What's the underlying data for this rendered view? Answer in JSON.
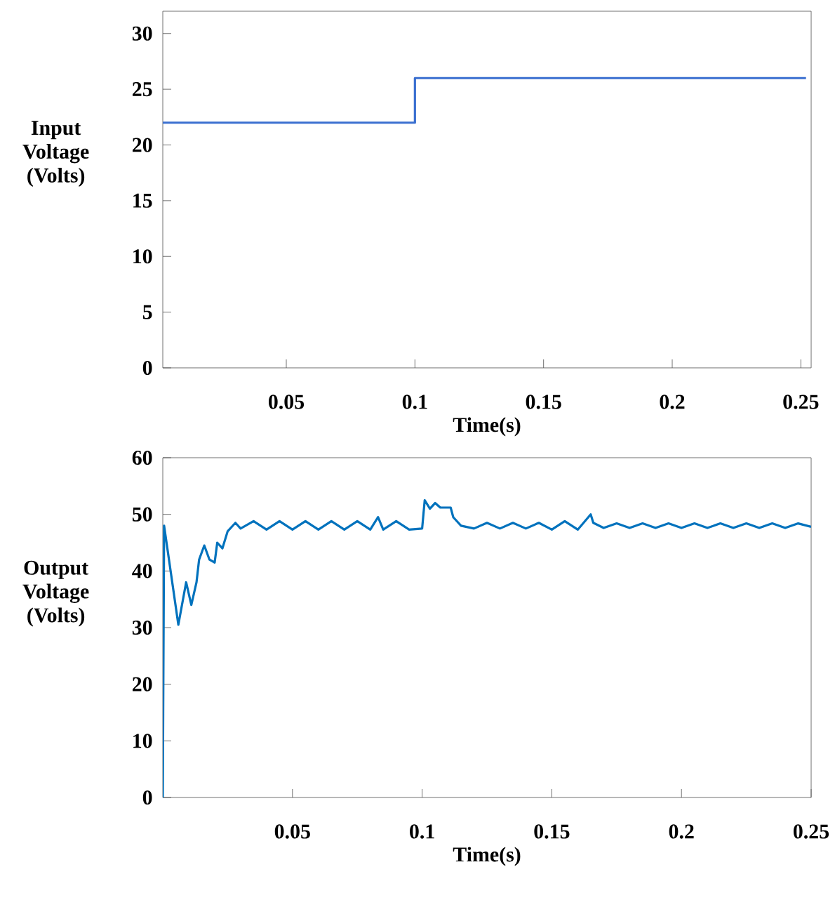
{
  "chart_data": [
    {
      "type": "line",
      "xlabel": "Time(s)",
      "ylabel": "Input Voltage (Volts)",
      "xlim": [
        0.002,
        0.254
      ],
      "ylim": [
        0,
        32
      ],
      "xticks": [
        0.05,
        0.1,
        0.15,
        0.2,
        0.25
      ],
      "yticks": [
        0,
        5,
        10,
        15,
        20,
        25,
        30
      ],
      "grid": false,
      "series": [
        {
          "color": "#3a6fd0",
          "x": [
            0.002,
            0.1,
            0.1,
            0.252
          ],
          "values": [
            22,
            22,
            26,
            26
          ]
        }
      ]
    },
    {
      "type": "line",
      "xlabel": "Time(s)",
      "ylabel": "Output Voltage (Volts)",
      "xlim": [
        0,
        0.25
      ],
      "ylim": [
        0,
        60
      ],
      "xticks": [
        0.05,
        0.1,
        0.15,
        0.2,
        0.25
      ],
      "yticks": [
        0,
        10,
        20,
        30,
        40,
        50,
        60
      ],
      "grid": false,
      "series": [
        {
          "color": "#0072bd",
          "x": [
            0,
            0.0005,
            0.006,
            0.009,
            0.011,
            0.013,
            0.014,
            0.016,
            0.018,
            0.02,
            0.021,
            0.023,
            0.025,
            0.028,
            0.03,
            0.035,
            0.04,
            0.045,
            0.05,
            0.055,
            0.06,
            0.065,
            0.07,
            0.075,
            0.08,
            0.083,
            0.085,
            0.09,
            0.095,
            0.1,
            0.101,
            0.103,
            0.105,
            0.107,
            0.111,
            0.112,
            0.115,
            0.12,
            0.125,
            0.13,
            0.135,
            0.14,
            0.145,
            0.15,
            0.155,
            0.16,
            0.165,
            0.166,
            0.17,
            0.175,
            0.18,
            0.185,
            0.19,
            0.195,
            0.2,
            0.205,
            0.21,
            0.215,
            0.22,
            0.225,
            0.23,
            0.235,
            0.24,
            0.245,
            0.25
          ],
          "values": [
            0,
            48,
            30.5,
            38,
            34,
            38,
            42,
            44.5,
            42,
            41.5,
            45,
            44,
            47,
            48.5,
            47.5,
            48.8,
            47.3,
            48.8,
            47.3,
            48.8,
            47.3,
            48.8,
            47.3,
            48.8,
            47.3,
            49.5,
            47.3,
            48.8,
            47.3,
            47.5,
            52.5,
            51,
            52,
            51.2,
            51.2,
            49.5,
            48,
            47.5,
            48.5,
            47.5,
            48.5,
            47.5,
            48.5,
            47.3,
            48.8,
            47.3,
            50,
            48.5,
            47.6,
            48.4,
            47.6,
            48.4,
            47.6,
            48.4,
            47.6,
            48.4,
            47.6,
            48.4,
            47.6,
            48.4,
            47.6,
            48.4,
            47.6,
            48.4,
            47.8
          ]
        }
      ]
    }
  ]
}
